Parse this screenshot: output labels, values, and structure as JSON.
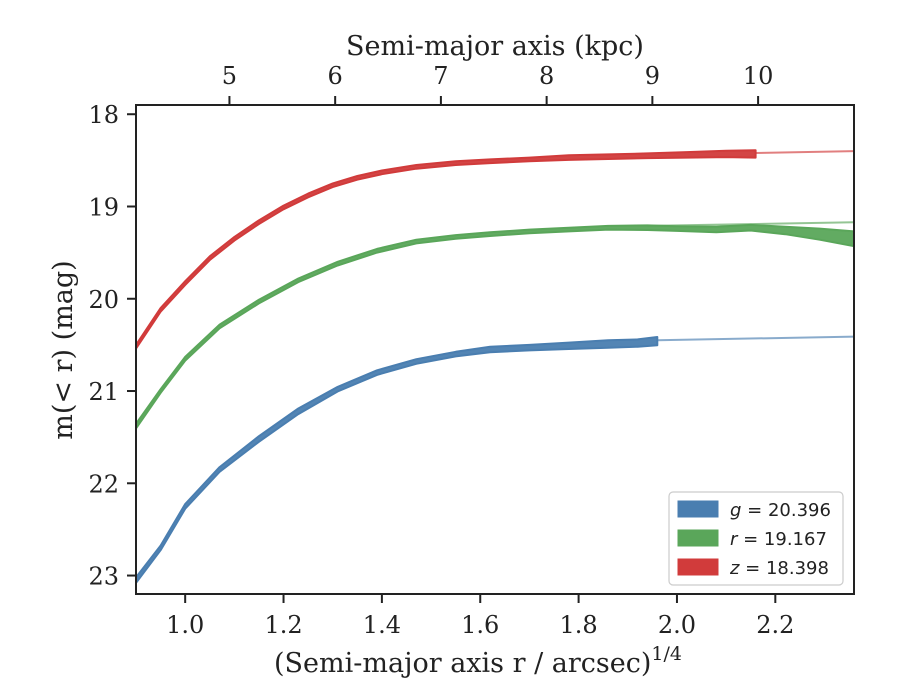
{
  "chart_data": {
    "type": "line",
    "title": "",
    "xlabel": "(Semi-major axis r / arcsec)",
    "xlabel_exponent": "1/4",
    "ylabel": "m(< r) (mag)",
    "top_xlabel": "Semi-major axis (kpc)",
    "xlim": [
      0.9,
      2.36
    ],
    "ylim": [
      23.2,
      17.9
    ],
    "y_inverted": true,
    "x_ticks": [
      1.0,
      1.2,
      1.4,
      1.6,
      1.8,
      2.0,
      2.2
    ],
    "x_tick_labels": [
      "1.0",
      "1.2",
      "1.4",
      "1.6",
      "1.8",
      "2.0",
      "2.2"
    ],
    "y_ticks": [
      18,
      19,
      20,
      21,
      22,
      23
    ],
    "y_tick_labels": [
      "18",
      "19",
      "20",
      "21",
      "22",
      "23"
    ],
    "top_ticks_kpc": [
      5,
      6,
      7,
      8,
      9,
      10
    ],
    "top_tick_labels": [
      "5",
      "6",
      "7",
      "8",
      "9",
      "10"
    ],
    "top_ticks_x": [
      1.09,
      1.305,
      1.52,
      1.735,
      1.95,
      2.165
    ],
    "grid": false,
    "legend_position": "bottom-right",
    "series": [
      {
        "name": "g = 20.396",
        "band": "g",
        "value": "20.396",
        "color": "#4a7eb0",
        "x": [
          0.9,
          0.95,
          1.0,
          1.07,
          1.15,
          1.23,
          1.31,
          1.39,
          1.47,
          1.55,
          1.62,
          1.7,
          1.78,
          1.86,
          1.92,
          1.96
        ],
        "y": [
          23.05,
          22.7,
          22.25,
          21.85,
          21.52,
          21.22,
          20.98,
          20.8,
          20.68,
          20.6,
          20.55,
          20.53,
          20.51,
          20.49,
          20.48,
          20.46
        ],
        "width": [
          0.06,
          0.05,
          0.05,
          0.05,
          0.06,
          0.06,
          0.05,
          0.05,
          0.05,
          0.05,
          0.06,
          0.06,
          0.07,
          0.08,
          0.08,
          0.09
        ],
        "extrap_x": [
          1.96,
          2.36
        ],
        "extrap_y": [
          20.45,
          20.41
        ]
      },
      {
        "name": "r = 19.167",
        "band": "r",
        "value": "19.167",
        "color": "#5aa65a",
        "x": [
          0.9,
          0.95,
          1.0,
          1.07,
          1.15,
          1.23,
          1.31,
          1.39,
          1.47,
          1.55,
          1.62,
          1.7,
          1.78,
          1.86,
          1.94,
          2.0,
          2.08,
          2.15,
          2.22,
          2.29,
          2.36
        ],
        "y": [
          21.38,
          21.0,
          20.65,
          20.3,
          20.03,
          19.8,
          19.62,
          19.48,
          19.38,
          19.33,
          19.3,
          19.27,
          19.25,
          19.23,
          19.23,
          19.24,
          19.25,
          19.23,
          19.26,
          19.3,
          19.35
        ],
        "width": [
          0.05,
          0.04,
          0.04,
          0.04,
          0.04,
          0.04,
          0.04,
          0.04,
          0.04,
          0.04,
          0.04,
          0.04,
          0.04,
          0.04,
          0.05,
          0.05,
          0.06,
          0.06,
          0.08,
          0.12,
          0.16
        ],
        "extrap_x": [
          1.94,
          2.36
        ],
        "extrap_y": [
          19.21,
          19.17
        ]
      },
      {
        "name": "z = 18.398",
        "band": "z",
        "value": "18.398",
        "color": "#d13b3b",
        "x": [
          0.9,
          0.95,
          1.0,
          1.05,
          1.1,
          1.15,
          1.2,
          1.25,
          1.3,
          1.35,
          1.4,
          1.47,
          1.55,
          1.62,
          1.7,
          1.78,
          1.86,
          1.94,
          2.02,
          2.1,
          2.16
        ],
        "y": [
          20.52,
          20.12,
          19.83,
          19.56,
          19.35,
          19.17,
          19.01,
          18.88,
          18.77,
          18.69,
          18.63,
          18.57,
          18.53,
          18.51,
          18.49,
          18.47,
          18.46,
          18.45,
          18.44,
          18.43,
          18.43
        ],
        "width": [
          0.04,
          0.04,
          0.04,
          0.04,
          0.04,
          0.04,
          0.04,
          0.04,
          0.04,
          0.04,
          0.04,
          0.04,
          0.04,
          0.04,
          0.04,
          0.05,
          0.05,
          0.05,
          0.06,
          0.07,
          0.08
        ],
        "extrap_x": [
          2.16,
          2.36
        ],
        "extrap_y": [
          18.42,
          18.4
        ]
      }
    ]
  }
}
